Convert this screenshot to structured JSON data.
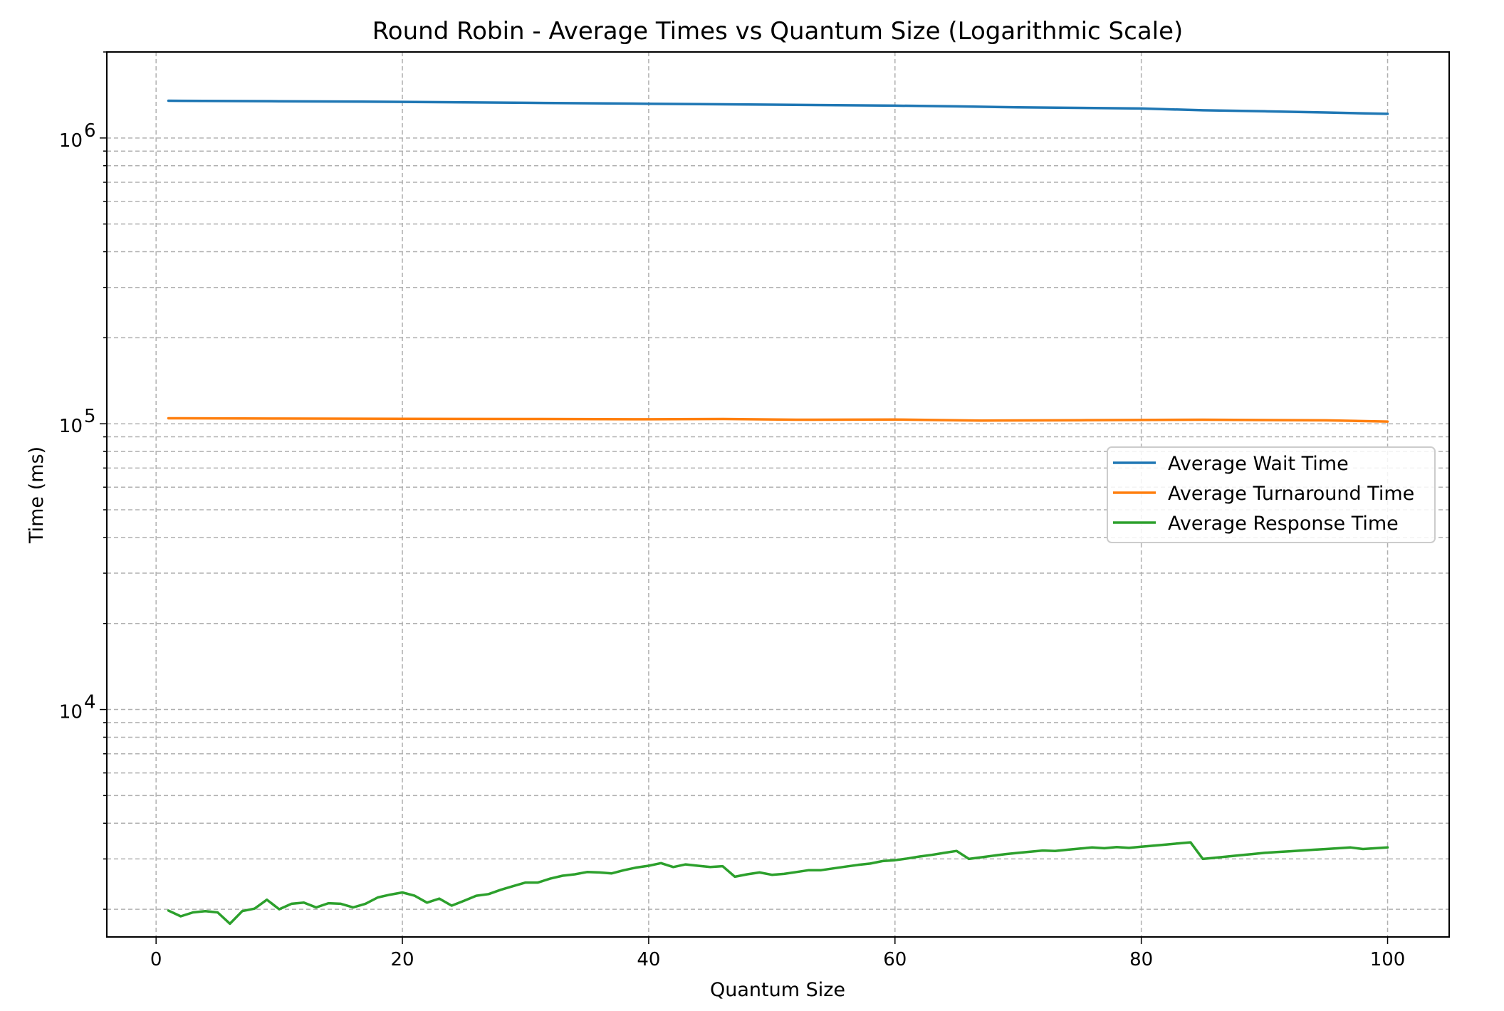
{
  "chart_data": {
    "type": "line",
    "title": "Round Robin - Average Times vs Quantum Size (Logarithmic Scale)",
    "xlabel": "Quantum Size",
    "ylabel": "Time (ms)",
    "xlim": [
      -4,
      105
    ],
    "ylim": [
      1600,
      2000000
    ],
    "yscale": "log",
    "x_ticks": [
      0,
      20,
      40,
      60,
      80,
      100
    ],
    "x_tick_labels": [
      "0",
      "20",
      "40",
      "60",
      "80",
      "100"
    ],
    "y_major_ticks": [
      10000,
      100000,
      1000000
    ],
    "y_tick_labels": [
      {
        "base": "10",
        "exp": "4"
      },
      {
        "base": "10",
        "exp": "5"
      },
      {
        "base": "10",
        "exp": "6"
      }
    ],
    "grid": true,
    "legend_position": "center-right",
    "series": [
      {
        "name": "Average Wait Time",
        "color": "#1f77b4",
        "points": [
          [
            1,
            1350000
          ],
          [
            10,
            1345000
          ],
          [
            20,
            1338000
          ],
          [
            30,
            1328000
          ],
          [
            40,
            1318000
          ],
          [
            50,
            1308000
          ],
          [
            60,
            1298000
          ],
          [
            65,
            1290000
          ],
          [
            70,
            1280000
          ],
          [
            80,
            1268000
          ],
          [
            85,
            1250000
          ],
          [
            90,
            1240000
          ],
          [
            95,
            1228000
          ],
          [
            100,
            1215000
          ]
        ]
      },
      {
        "name": "Average Turnaround Time",
        "color": "#ff7f0e",
        "points": [
          [
            1,
            104500
          ],
          [
            10,
            104300
          ],
          [
            20,
            104100
          ],
          [
            30,
            103900
          ],
          [
            40,
            103700
          ],
          [
            46,
            103900
          ],
          [
            52,
            103300
          ],
          [
            60,
            103500
          ],
          [
            67,
            102600
          ],
          [
            75,
            102900
          ],
          [
            85,
            103300
          ],
          [
            95,
            102800
          ],
          [
            100,
            101800
          ]
        ]
      },
      {
        "name": "Average Response Time",
        "color": "#2ca02c",
        "points": [
          [
            1,
            1980
          ],
          [
            2,
            1890
          ],
          [
            3,
            1950
          ],
          [
            4,
            1970
          ],
          [
            5,
            1950
          ],
          [
            6,
            1780
          ],
          [
            7,
            1970
          ],
          [
            8,
            2010
          ],
          [
            9,
            2160
          ],
          [
            10,
            2000
          ],
          [
            11,
            2090
          ],
          [
            12,
            2110
          ],
          [
            13,
            2030
          ],
          [
            14,
            2100
          ],
          [
            15,
            2090
          ],
          [
            16,
            2030
          ],
          [
            17,
            2090
          ],
          [
            18,
            2200
          ],
          [
            19,
            2250
          ],
          [
            20,
            2290
          ],
          [
            21,
            2230
          ],
          [
            22,
            2110
          ],
          [
            23,
            2180
          ],
          [
            24,
            2060
          ],
          [
            25,
            2140
          ],
          [
            26,
            2230
          ],
          [
            27,
            2260
          ],
          [
            28,
            2340
          ],
          [
            29,
            2410
          ],
          [
            30,
            2480
          ],
          [
            31,
            2480
          ],
          [
            32,
            2560
          ],
          [
            33,
            2620
          ],
          [
            34,
            2650
          ],
          [
            35,
            2700
          ],
          [
            36,
            2690
          ],
          [
            37,
            2670
          ],
          [
            38,
            2740
          ],
          [
            39,
            2800
          ],
          [
            40,
            2840
          ],
          [
            41,
            2900
          ],
          [
            42,
            2810
          ],
          [
            43,
            2870
          ],
          [
            44,
            2840
          ],
          [
            45,
            2810
          ],
          [
            46,
            2830
          ],
          [
            47,
            2600
          ],
          [
            48,
            2650
          ],
          [
            49,
            2690
          ],
          [
            50,
            2640
          ],
          [
            51,
            2660
          ],
          [
            52,
            2700
          ],
          [
            53,
            2740
          ],
          [
            54,
            2740
          ],
          [
            55,
            2780
          ],
          [
            56,
            2820
          ],
          [
            57,
            2860
          ],
          [
            58,
            2890
          ],
          [
            59,
            2950
          ],
          [
            60,
            2970
          ],
          [
            61,
            3010
          ],
          [
            62,
            3060
          ],
          [
            63,
            3100
          ],
          [
            64,
            3150
          ],
          [
            65,
            3200
          ],
          [
            66,
            3000
          ],
          [
            67,
            3040
          ],
          [
            68,
            3080
          ],
          [
            69,
            3120
          ],
          [
            70,
            3150
          ],
          [
            71,
            3180
          ],
          [
            72,
            3210
          ],
          [
            73,
            3200
          ],
          [
            74,
            3230
          ],
          [
            75,
            3260
          ],
          [
            76,
            3290
          ],
          [
            77,
            3270
          ],
          [
            78,
            3300
          ],
          [
            79,
            3280
          ],
          [
            80,
            3310
          ],
          [
            81,
            3340
          ],
          [
            82,
            3370
          ],
          [
            83,
            3400
          ],
          [
            84,
            3430
          ],
          [
            85,
            3000
          ],
          [
            86,
            3030
          ],
          [
            87,
            3060
          ],
          [
            88,
            3090
          ],
          [
            89,
            3120
          ],
          [
            90,
            3150
          ],
          [
            91,
            3170
          ],
          [
            92,
            3190
          ],
          [
            93,
            3210
          ],
          [
            94,
            3230
          ],
          [
            95,
            3250
          ],
          [
            96,
            3270
          ],
          [
            97,
            3290
          ],
          [
            98,
            3250
          ],
          [
            99,
            3270
          ],
          [
            100,
            3290
          ]
        ]
      }
    ]
  }
}
